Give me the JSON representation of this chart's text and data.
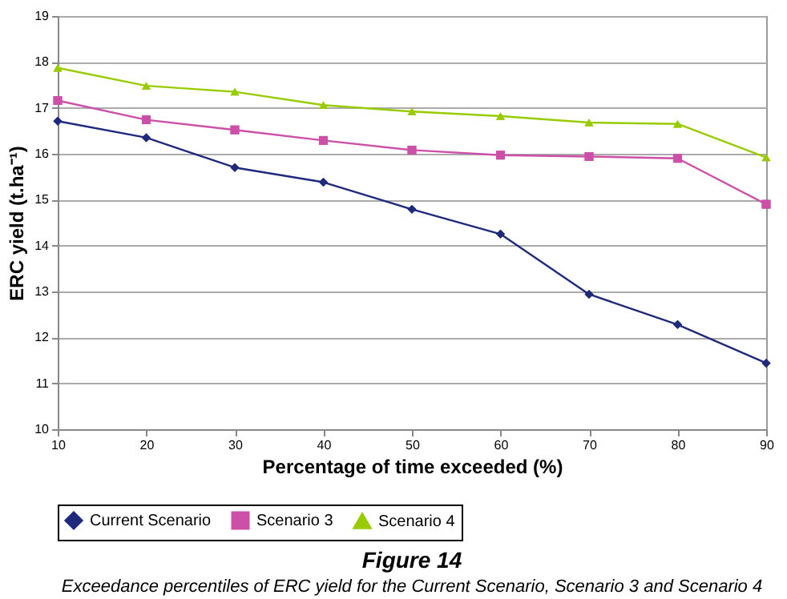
{
  "chart_data": {
    "type": "line",
    "title": "Figure 14",
    "subtitle": "Exceedance percentiles of ERC yield for the Current Scenario, Scenario 3 and Scenario 4",
    "xlabel": "Percentage of time exceeded (%)",
    "ylabel": "ERC yield (t.ha⁻¹)",
    "x": [
      10,
      20,
      30,
      40,
      50,
      60,
      70,
      80,
      90
    ],
    "series": [
      {
        "name": "Current Scenario",
        "color": "#1f2a7c",
        "marker": "diamond",
        "values": [
          16.71,
          16.35,
          15.7,
          15.38,
          14.79,
          14.25,
          12.94,
          12.28,
          11.44
        ]
      },
      {
        "name": "Scenario 3",
        "color": "#cc4fa8",
        "marker": "square",
        "values": [
          17.16,
          16.74,
          16.52,
          16.29,
          16.08,
          15.97,
          15.94,
          15.9,
          14.9
        ]
      },
      {
        "name": "Scenario 4",
        "color": "#99cc00",
        "marker": "triangle",
        "values": [
          17.87,
          17.48,
          17.35,
          17.06,
          16.92,
          16.82,
          16.68,
          16.65,
          15.92
        ]
      }
    ],
    "xlim": [
      10,
      90
    ],
    "xticks": [
      10,
      20,
      30,
      40,
      50,
      60,
      70,
      80,
      90
    ],
    "ylim": [
      10,
      19
    ],
    "yticks": [
      10,
      11,
      12,
      13,
      14,
      15,
      16,
      17,
      18,
      19
    ],
    "grid": "y",
    "legend": "bottom",
    "line_style": "solid"
  }
}
